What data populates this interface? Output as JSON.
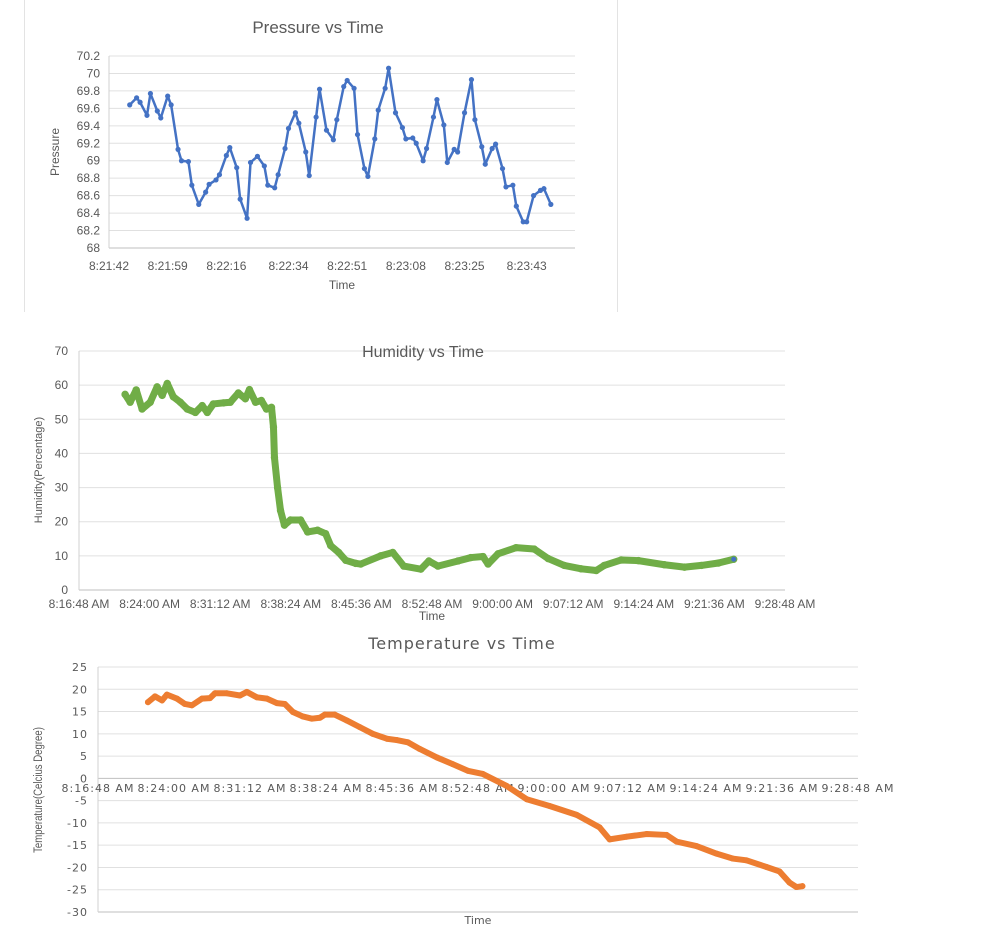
{
  "chart_data": [
    {
      "type": "line",
      "title": "Pressure vs Time",
      "xlabel": "Time",
      "ylabel": "Pressure",
      "ylim": [
        68,
        70.2
      ],
      "xlim": [
        "8:21:42",
        "8:23:57"
      ],
      "grid": true,
      "markers": true,
      "color": "#4472C4",
      "yticks": [
        "68",
        "68.2",
        "68.4",
        "68.6",
        "68.8",
        "69",
        "69.2",
        "69.4",
        "69.6",
        "69.8",
        "70",
        "70.2"
      ],
      "xticks": [
        "8:21:42",
        "8:21:59",
        "8:22:16",
        "8:22:34",
        "8:22:51",
        "8:23:08",
        "8:23:25",
        "8:23:43"
      ],
      "x": [
        "8:21:48",
        "8:21:50",
        "8:21:51",
        "8:21:53",
        "8:21:54",
        "8:21:56",
        "8:21:57",
        "8:21:59",
        "8:22:00",
        "8:22:02",
        "8:22:03",
        "8:22:05",
        "8:22:06",
        "8:22:08",
        "8:22:10",
        "8:22:11",
        "8:22:13",
        "8:22:14",
        "8:22:16",
        "8:22:17",
        "8:22:19",
        "8:22:20",
        "8:22:22",
        "8:22:23",
        "8:22:25",
        "8:22:27",
        "8:22:28",
        "8:22:30",
        "8:22:31",
        "8:22:33",
        "8:22:34",
        "8:22:36",
        "8:22:37",
        "8:22:39",
        "8:22:40",
        "8:22:42",
        "8:22:43",
        "8:22:45",
        "8:22:47",
        "8:22:48",
        "8:22:50",
        "8:22:51",
        "8:22:53",
        "8:22:54",
        "8:22:56",
        "8:22:57",
        "8:22:59",
        "8:23:00",
        "8:23:02",
        "8:23:03",
        "8:23:05",
        "8:23:07",
        "8:23:08",
        "8:23:10",
        "8:23:11",
        "8:23:13",
        "8:23:14",
        "8:23:16",
        "8:23:17",
        "8:23:19",
        "8:23:20",
        "8:23:22",
        "8:23:23",
        "8:23:25",
        "8:23:27",
        "8:23:28",
        "8:23:30",
        "8:23:31",
        "8:23:33",
        "8:23:34",
        "8:23:36",
        "8:23:37",
        "8:23:39",
        "8:23:40",
        "8:23:42",
        "8:23:43",
        "8:23:45",
        "8:23:47",
        "8:23:48",
        "8:23:50"
      ],
      "y": [
        69.64,
        69.72,
        69.67,
        69.52,
        69.77,
        69.57,
        69.49,
        69.74,
        69.64,
        69.13,
        69.0,
        68.99,
        68.72,
        68.5,
        68.64,
        68.73,
        68.78,
        68.84,
        69.06,
        69.15,
        68.92,
        68.56,
        68.34,
        68.98,
        69.05,
        68.94,
        68.72,
        68.69,
        68.84,
        69.14,
        69.37,
        69.55,
        69.43,
        69.1,
        68.83,
        69.5,
        69.82,
        69.35,
        69.24,
        69.47,
        69.85,
        69.92,
        69.83,
        69.3,
        68.91,
        68.82,
        69.25,
        69.58,
        69.83,
        70.06,
        69.55,
        69.38,
        69.25,
        69.26,
        69.2,
        69.0,
        69.14,
        69.5,
        69.7,
        69.41,
        68.98,
        69.13,
        69.1,
        69.55,
        69.93,
        69.47,
        69.16,
        68.96,
        69.14,
        69.19,
        68.91,
        68.7,
        68.72,
        68.48,
        68.3,
        68.3,
        68.6,
        68.66,
        68.68,
        68.5
      ]
    },
    {
      "type": "scatter",
      "title": "Humidity vs Time",
      "xlabel": "Time",
      "ylabel": "Humidity(Percentage)",
      "ylim": [
        0,
        70
      ],
      "xlim": [
        "8:16:48 AM",
        "9:28:48 AM"
      ],
      "grid": true,
      "color": "#70AD47",
      "marker_edge_color": "#4472C4",
      "yticks": [
        "0",
        "10",
        "20",
        "30",
        "40",
        "50",
        "60",
        "70"
      ],
      "xticks": [
        "8:16:48 AM",
        "8:24:00 AM",
        "8:31:12 AM",
        "8:38:24 AM",
        "8:45:36 AM",
        "8:52:48 AM",
        "9:00:00 AM",
        "9:07:12 AM",
        "9:14:24 AM",
        "9:21:36 AM",
        "9:28:48 AM"
      ],
      "x": [
        "8:21:30",
        "8:22:01",
        "8:22:38",
        "8:23:14",
        "8:24:04",
        "8:24:46",
        "8:25:17",
        "8:25:48",
        "8:26:25",
        "8:27:08",
        "8:27:50",
        "8:28:40",
        "8:29:22",
        "8:29:53",
        "8:30:30",
        "8:31:31",
        "8:32:14",
        "8:33:03",
        "8:33:46",
        "8:34:11",
        "8:34:48",
        "8:35:24",
        "8:35:55",
        "8:36:26",
        "8:36:38",
        "8:36:44",
        "8:37:03",
        "8:37:21",
        "8:37:45",
        "8:38:22",
        "8:39:24",
        "8:40:07",
        "8:41:08",
        "8:41:57",
        "8:42:28",
        "8:43:17",
        "8:44:00",
        "8:45:01",
        "8:45:32",
        "8:47:34",
        "8:48:48",
        "8:49:55",
        "8:51:40",
        "8:52:29",
        "8:53:24",
        "8:55:27",
        "8:56:46",
        "8:58:00",
        "8:58:31",
        "8:59:32",
        "9:01:22",
        "9:03:13",
        "9:04:39",
        "9:06:17",
        "9:08:01",
        "9:09:33",
        "9:10:22",
        "9:12:06",
        "9:13:51",
        "9:16:30",
        "9:18:33",
        "9:20:17",
        "9:22:01",
        "9:23:34"
      ],
      "y": [
        57.3,
        55,
        58.6,
        53,
        55,
        59.5,
        57,
        60.5,
        56.6,
        55,
        53,
        52,
        54,
        52,
        54.5,
        54.8,
        55,
        57.7,
        56,
        58.7,
        55,
        55.5,
        53,
        53.5,
        47.7,
        38.8,
        30,
        23.3,
        19,
        20.5,
        20.5,
        17,
        17.5,
        16.5,
        13,
        11,
        8.7,
        7.8,
        7.6,
        10,
        11,
        7,
        6.1,
        8.5,
        7,
        8.5,
        9.5,
        9.8,
        7.6,
        10.6,
        12.4,
        12,
        9.2,
        7.2,
        6.2,
        5.7,
        7.2,
        8.8,
        8.6,
        7.4,
        6.7,
        7.2,
        7.9,
        9
      ]
    },
    {
      "type": "line",
      "title": "Temperature vs Time",
      "xlabel": "Time",
      "ylabel": "Temperature(Celcius Degree)",
      "ylim": [
        -30,
        25
      ],
      "xlim": [
        "8:16:48 AM",
        "9:28:48 AM"
      ],
      "grid": true,
      "color": "#ED7D31",
      "yticks": [
        "-30",
        "-25",
        "-20",
        "-15",
        "-10",
        "-5",
        "0",
        "5",
        "10",
        "15",
        "20",
        "25"
      ],
      "xticks": [
        "8:16:48 AM",
        "8:24:00 AM",
        "8:31:12 AM",
        "8:38:24 AM",
        "8:45:36 AM",
        "8:52:48 AM",
        "9:00:00 AM",
        "9:07:12 AM",
        "9:14:24 AM",
        "9:21:36 AM",
        "9:28:48 AM"
      ],
      "x": [
        "8:21:32",
        "8:22:12",
        "8:22:52",
        "8:23:20",
        "8:24:17",
        "8:25:02",
        "8:25:42",
        "8:26:39",
        "8:27:24",
        "8:27:53",
        "8:29:01",
        "8:30:15",
        "8:30:54",
        "8:31:51",
        "8:32:48",
        "8:33:45",
        "8:34:30",
        "8:35:16",
        "8:36:12",
        "8:37:04",
        "8:37:49",
        "8:38:17",
        "8:39:14",
        "8:40:22",
        "8:41:36",
        "8:42:50",
        "8:44:10",
        "8:45:06",
        "8:46:09",
        "8:47:17",
        "8:48:54",
        "8:50:24",
        "8:51:50",
        "8:53:15",
        "8:55:31",
        "8:57:25",
        "8:59:35",
        "9:02:09",
        "9:04:19",
        "9:05:16",
        "9:06:53",
        "9:08:46",
        "9:10:40",
        "9:11:37",
        "9:13:30",
        "9:15:24",
        "9:16:55",
        "9:18:14",
        "9:20:08",
        "9:21:22",
        "9:22:19",
        "9:22:58",
        "9:23:32"
      ],
      "y": [
        17.1,
        18.4,
        17.5,
        18.8,
        17.9,
        16.7,
        16.4,
        17.9,
        18.0,
        19.1,
        19.1,
        18.6,
        19.4,
        18.2,
        17.9,
        16.9,
        16.7,
        14.9,
        13.9,
        13.4,
        13.6,
        14.3,
        14.3,
        13.0,
        11.5,
        10.0,
        8.9,
        8.6,
        8.1,
        6.6,
        4.7,
        3.2,
        1.7,
        1.0,
        -1.7,
        -4.7,
        -6.2,
        -8.2,
        -11.0,
        -13.7,
        -13.1,
        -12.5,
        -12.7,
        -14.2,
        -15.2,
        -16.9,
        -18.0,
        -18.4,
        -19.9,
        -20.9,
        -23.4,
        -24.4,
        -24.2
      ]
    }
  ]
}
